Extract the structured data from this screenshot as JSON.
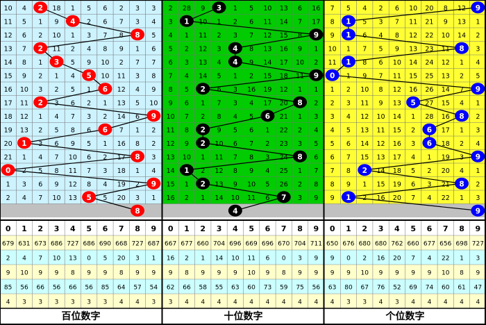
{
  "chart_data": {
    "type": "table",
    "sections": [
      {
        "name": "百位数字",
        "background": "#cdf3ff",
        "ball_color": "#ff0000",
        "ball_text_color": "#ffffff",
        "line_color": "#000000",
        "rows": [
          [
            "10",
            "4",
            "2",
            "18",
            "1",
            "5",
            "6",
            "2",
            "3",
            "3"
          ],
          [
            "11",
            "5",
            "1",
            "9",
            "4",
            "2",
            "6",
            "7",
            "3",
            "4"
          ],
          [
            "12",
            "6",
            "2",
            "10",
            "1",
            "3",
            "7",
            "8",
            "5",
            "5"
          ],
          [
            "13",
            "7",
            "2",
            "11",
            "2",
            "4",
            "8",
            "9",
            "1",
            "6"
          ],
          [
            "14",
            "8",
            "1",
            "3",
            "5",
            "9",
            "10",
            "2",
            "7",
            "7"
          ],
          [
            "15",
            "9",
            "2",
            "1",
            "4",
            "5",
            "10",
            "11",
            "3",
            "8"
          ],
          [
            "16",
            "10",
            "3",
            "2",
            "5",
            "1",
            "6",
            "12",
            "4",
            "9"
          ],
          [
            "17",
            "11",
            "2",
            "3",
            "6",
            "2",
            "1",
            "13",
            "5",
            "10"
          ],
          [
            "18",
            "12",
            "1",
            "4",
            "7",
            "3",
            "2",
            "14",
            "6",
            "9"
          ],
          [
            "19",
            "13",
            "2",
            "5",
            "8",
            "6",
            "15",
            "7",
            "1",
            "2"
          ],
          [
            "20",
            "1",
            "3",
            "6",
            "9",
            "5",
            "1",
            "16",
            "8",
            "2"
          ],
          [
            "21",
            "1",
            "4",
            "7",
            "10",
            "6",
            "2",
            "17",
            "8",
            "3"
          ],
          [
            "0",
            "2",
            "5",
            "8",
            "11",
            "7",
            "3",
            "18",
            "1",
            "4"
          ],
          [
            "1",
            "3",
            "6",
            "9",
            "12",
            "8",
            "4",
            "19",
            "2",
            "9"
          ],
          [
            "2",
            "4",
            "7",
            "10",
            "13",
            "5",
            "5",
            "20",
            "3",
            "1"
          ],
          [
            "",
            "",
            "",
            "",
            "",
            "",
            "",
            "",
            "8",
            ""
          ]
        ],
        "balls": [
          2,
          4,
          8,
          2,
          3,
          5,
          6,
          2,
          9,
          6,
          1,
          8,
          0,
          9,
          5,
          8
        ],
        "header": [
          "0",
          "1",
          "2",
          "3",
          "4",
          "5",
          "6",
          "7",
          "8",
          "9"
        ],
        "stats": [
          [
            "679",
            "631",
            "673",
            "686",
            "727",
            "686",
            "690",
            "668",
            "727",
            "687"
          ],
          [
            "2",
            "4",
            "7",
            "10",
            "13",
            "0",
            "5",
            "20",
            "3",
            "1"
          ],
          [
            "9",
            "10",
            "9",
            "9",
            "8",
            "9",
            "9",
            "8",
            "9",
            "9"
          ],
          [
            "85",
            "56",
            "66",
            "56",
            "66",
            "56",
            "85",
            "64",
            "57",
            "54"
          ],
          [
            "4",
            "3",
            "3",
            "3",
            "3",
            "3",
            "3",
            "4",
            "4",
            "3"
          ]
        ]
      },
      {
        "name": "十位数字",
        "background": "#00cc00",
        "ball_color": "#000000",
        "ball_text_color": "#ffffff",
        "line_color": "#000000",
        "rows": [
          [
            "2",
            "28",
            "9",
            "3",
            "1",
            "5",
            "10",
            "13",
            "6",
            "16"
          ],
          [
            "3",
            "1",
            "10",
            "1",
            "2",
            "6",
            "11",
            "14",
            "7",
            "17"
          ],
          [
            "4",
            "1",
            "11",
            "2",
            "3",
            "7",
            "12",
            "15",
            "8",
            "9"
          ],
          [
            "5",
            "2",
            "12",
            "3",
            "4",
            "8",
            "13",
            "16",
            "9",
            "1"
          ],
          [
            "6",
            "3",
            "13",
            "4",
            "4",
            "9",
            "14",
            "17",
            "10",
            "2"
          ],
          [
            "7",
            "4",
            "14",
            "5",
            "1",
            "2",
            "15",
            "18",
            "11",
            "9"
          ],
          [
            "8",
            "5",
            "2",
            "6",
            "3",
            "16",
            "19",
            "12",
            "1",
            "1"
          ],
          [
            "9",
            "6",
            "1",
            "7",
            "3",
            "4",
            "17",
            "20",
            "8",
            "2"
          ],
          [
            "10",
            "7",
            "2",
            "8",
            "4",
            "5",
            "6",
            "21",
            "1",
            "3"
          ],
          [
            "11",
            "8",
            "2",
            "9",
            "5",
            "6",
            "1",
            "22",
            "2",
            "4"
          ],
          [
            "12",
            "9",
            "2",
            "10",
            "6",
            "7",
            "2",
            "23",
            "3",
            "5"
          ],
          [
            "13",
            "10",
            "1",
            "11",
            "7",
            "8",
            "3",
            "24",
            "8",
            "6"
          ],
          [
            "14",
            "1",
            "2",
            "12",
            "8",
            "9",
            "4",
            "25",
            "1",
            "7"
          ],
          [
            "15",
            "1",
            "2",
            "13",
            "9",
            "10",
            "5",
            "26",
            "2",
            "8"
          ],
          [
            "16",
            "2",
            "1",
            "14",
            "10",
            "11",
            "6",
            "7",
            "3",
            "9"
          ],
          [
            "",
            "",
            "",
            "",
            "4",
            "",
            "",
            "",
            "",
            ""
          ]
        ],
        "balls": [
          3,
          1,
          9,
          4,
          4,
          9,
          2,
          8,
          6,
          2,
          2,
          8,
          1,
          2,
          7,
          4
        ],
        "header": [
          "0",
          "1",
          "2",
          "3",
          "4",
          "5",
          "6",
          "7",
          "8",
          "9"
        ],
        "stats": [
          [
            "667",
            "677",
            "660",
            "704",
            "696",
            "669",
            "696",
            "670",
            "704",
            "711"
          ],
          [
            "16",
            "2",
            "1",
            "14",
            "10",
            "11",
            "6",
            "0",
            "3",
            "9"
          ],
          [
            "9",
            "8",
            "9",
            "9",
            "9",
            "10",
            "9",
            "8",
            "9",
            "9"
          ],
          [
            "62",
            "66",
            "58",
            "55",
            "63",
            "60",
            "73",
            "59",
            "75",
            "56"
          ],
          [
            "3",
            "4",
            "4",
            "4",
            "4",
            "4",
            "4",
            "4",
            "4",
            "4"
          ]
        ]
      },
      {
        "name": "个位数字",
        "background": "#ffff33",
        "ball_color": "#0000ff",
        "ball_text_color": "#ffffff",
        "line_color": "#000000",
        "rows": [
          [
            "7",
            "5",
            "4",
            "2",
            "6",
            "10",
            "20",
            "8",
            "12",
            "9"
          ],
          [
            "8",
            "1",
            "5",
            "3",
            "7",
            "11",
            "21",
            "9",
            "13",
            "1"
          ],
          [
            "9",
            "1",
            "6",
            "4",
            "8",
            "12",
            "22",
            "10",
            "14",
            "2"
          ],
          [
            "10",
            "1",
            "7",
            "5",
            "9",
            "13",
            "23",
            "11",
            "8",
            "3"
          ],
          [
            "11",
            "1",
            "8",
            "6",
            "10",
            "14",
            "24",
            "12",
            "1",
            "4"
          ],
          [
            "0",
            "1",
            "9",
            "7",
            "11",
            "15",
            "25",
            "13",
            "2",
            "5"
          ],
          [
            "1",
            "2",
            "10",
            "8",
            "12",
            "16",
            "26",
            "14",
            "7",
            "9"
          ],
          [
            "2",
            "3",
            "11",
            "9",
            "13",
            "5",
            "27",
            "15",
            "4",
            "1"
          ],
          [
            "3",
            "4",
            "12",
            "10",
            "14",
            "1",
            "28",
            "16",
            "8",
            "2"
          ],
          [
            "4",
            "5",
            "13",
            "11",
            "15",
            "2",
            "6",
            "17",
            "1",
            "3"
          ],
          [
            "5",
            "6",
            "14",
            "12",
            "16",
            "3",
            "6",
            "18",
            "2",
            "4"
          ],
          [
            "6",
            "7",
            "15",
            "13",
            "17",
            "4",
            "1",
            "19",
            "3",
            "9"
          ],
          [
            "7",
            "8",
            "2",
            "14",
            "18",
            "5",
            "2",
            "20",
            "4",
            "1"
          ],
          [
            "8",
            "9",
            "1",
            "15",
            "19",
            "6",
            "3",
            "21",
            "8",
            "2"
          ],
          [
            "9",
            "1",
            "2",
            "16",
            "20",
            "7",
            "4",
            "22",
            "1",
            "3"
          ],
          [
            "",
            "",
            "",
            "",
            "",
            "",
            "",
            "",
            "",
            "9"
          ]
        ],
        "balls": [
          9,
          1,
          1,
          8,
          1,
          0,
          9,
          5,
          8,
          6,
          6,
          9,
          2,
          8,
          1,
          9
        ],
        "header": [
          "0",
          "1",
          "2",
          "3",
          "4",
          "5",
          "6",
          "7",
          "8",
          "9"
        ],
        "stats": [
          [
            "650",
            "676",
            "680",
            "680",
            "762",
            "660",
            "677",
            "656",
            "698",
            "727"
          ],
          [
            "9",
            "0",
            "2",
            "16",
            "20",
            "7",
            "4",
            "22",
            "1",
            "3"
          ],
          [
            "9",
            "9",
            "10",
            "9",
            "9",
            "9",
            "9",
            "10",
            "8",
            "9"
          ],
          [
            "63",
            "80",
            "67",
            "76",
            "52",
            "69",
            "74",
            "60",
            "61",
            "47"
          ],
          [
            "4",
            "3",
            "3",
            "4",
            "3",
            "4",
            "4",
            "4",
            "4",
            "4"
          ]
        ]
      }
    ],
    "stats_row_colors": [
      "#ffffcc",
      "#ccffff",
      "#ffffcc",
      "#ccffff",
      "#ffffcc"
    ]
  }
}
